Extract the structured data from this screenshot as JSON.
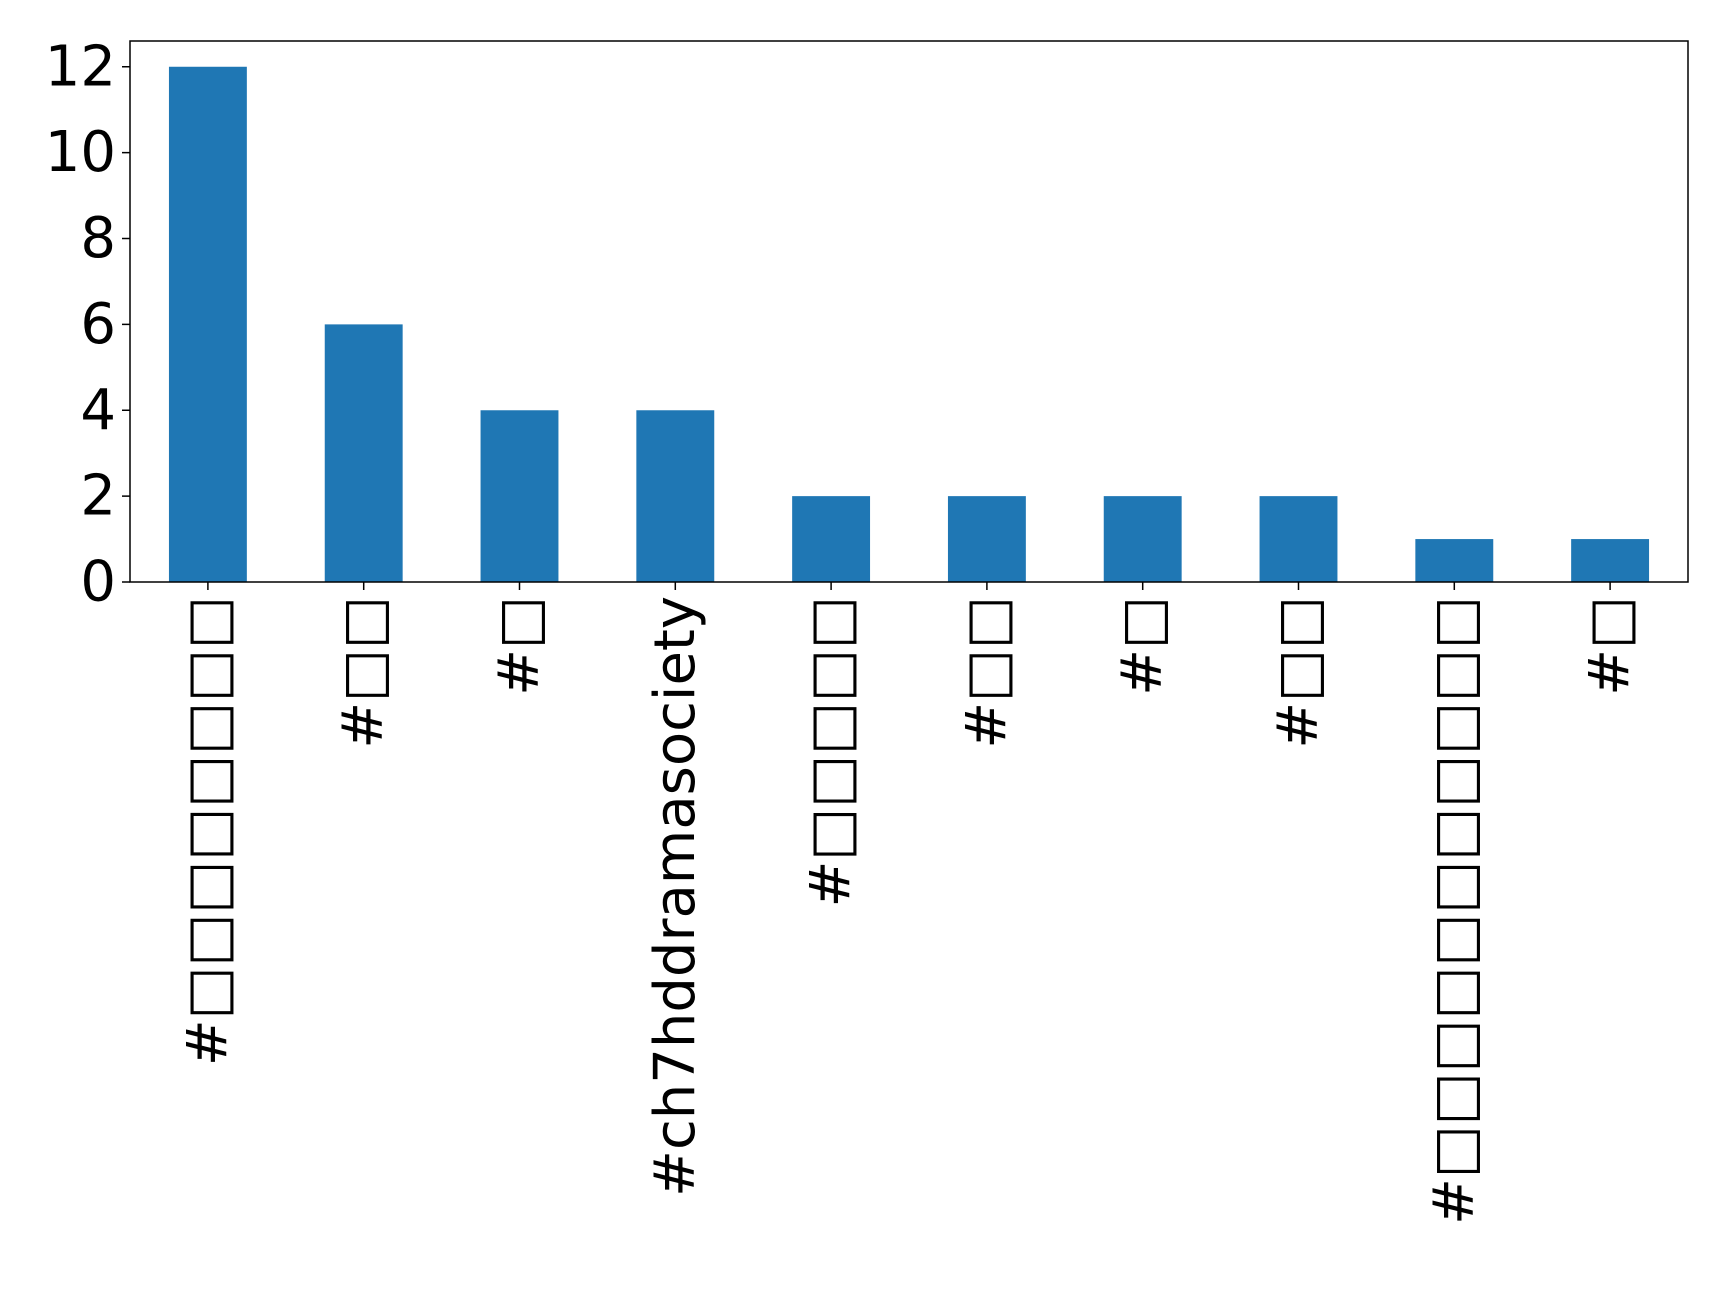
{
  "chart_data": {
    "type": "bar",
    "categories": [
      "#□□□□□□□□",
      "#□□",
      "#□",
      "#ch7hddramasociety",
      "#□□□□□",
      "#□□",
      "#□",
      "#□□",
      "#□□□□□□□□□□□",
      "#□"
    ],
    "values": [
      12,
      6,
      4,
      4,
      2,
      2,
      2,
      2,
      1,
      1
    ],
    "title": "",
    "xlabel": "",
    "ylabel": "",
    "ylim": [
      0,
      12.6
    ],
    "yticks": [
      0,
      2,
      4,
      6,
      8,
      10,
      12
    ],
    "grid": false,
    "legend": "none",
    "bar_color": "#1f77b4"
  }
}
